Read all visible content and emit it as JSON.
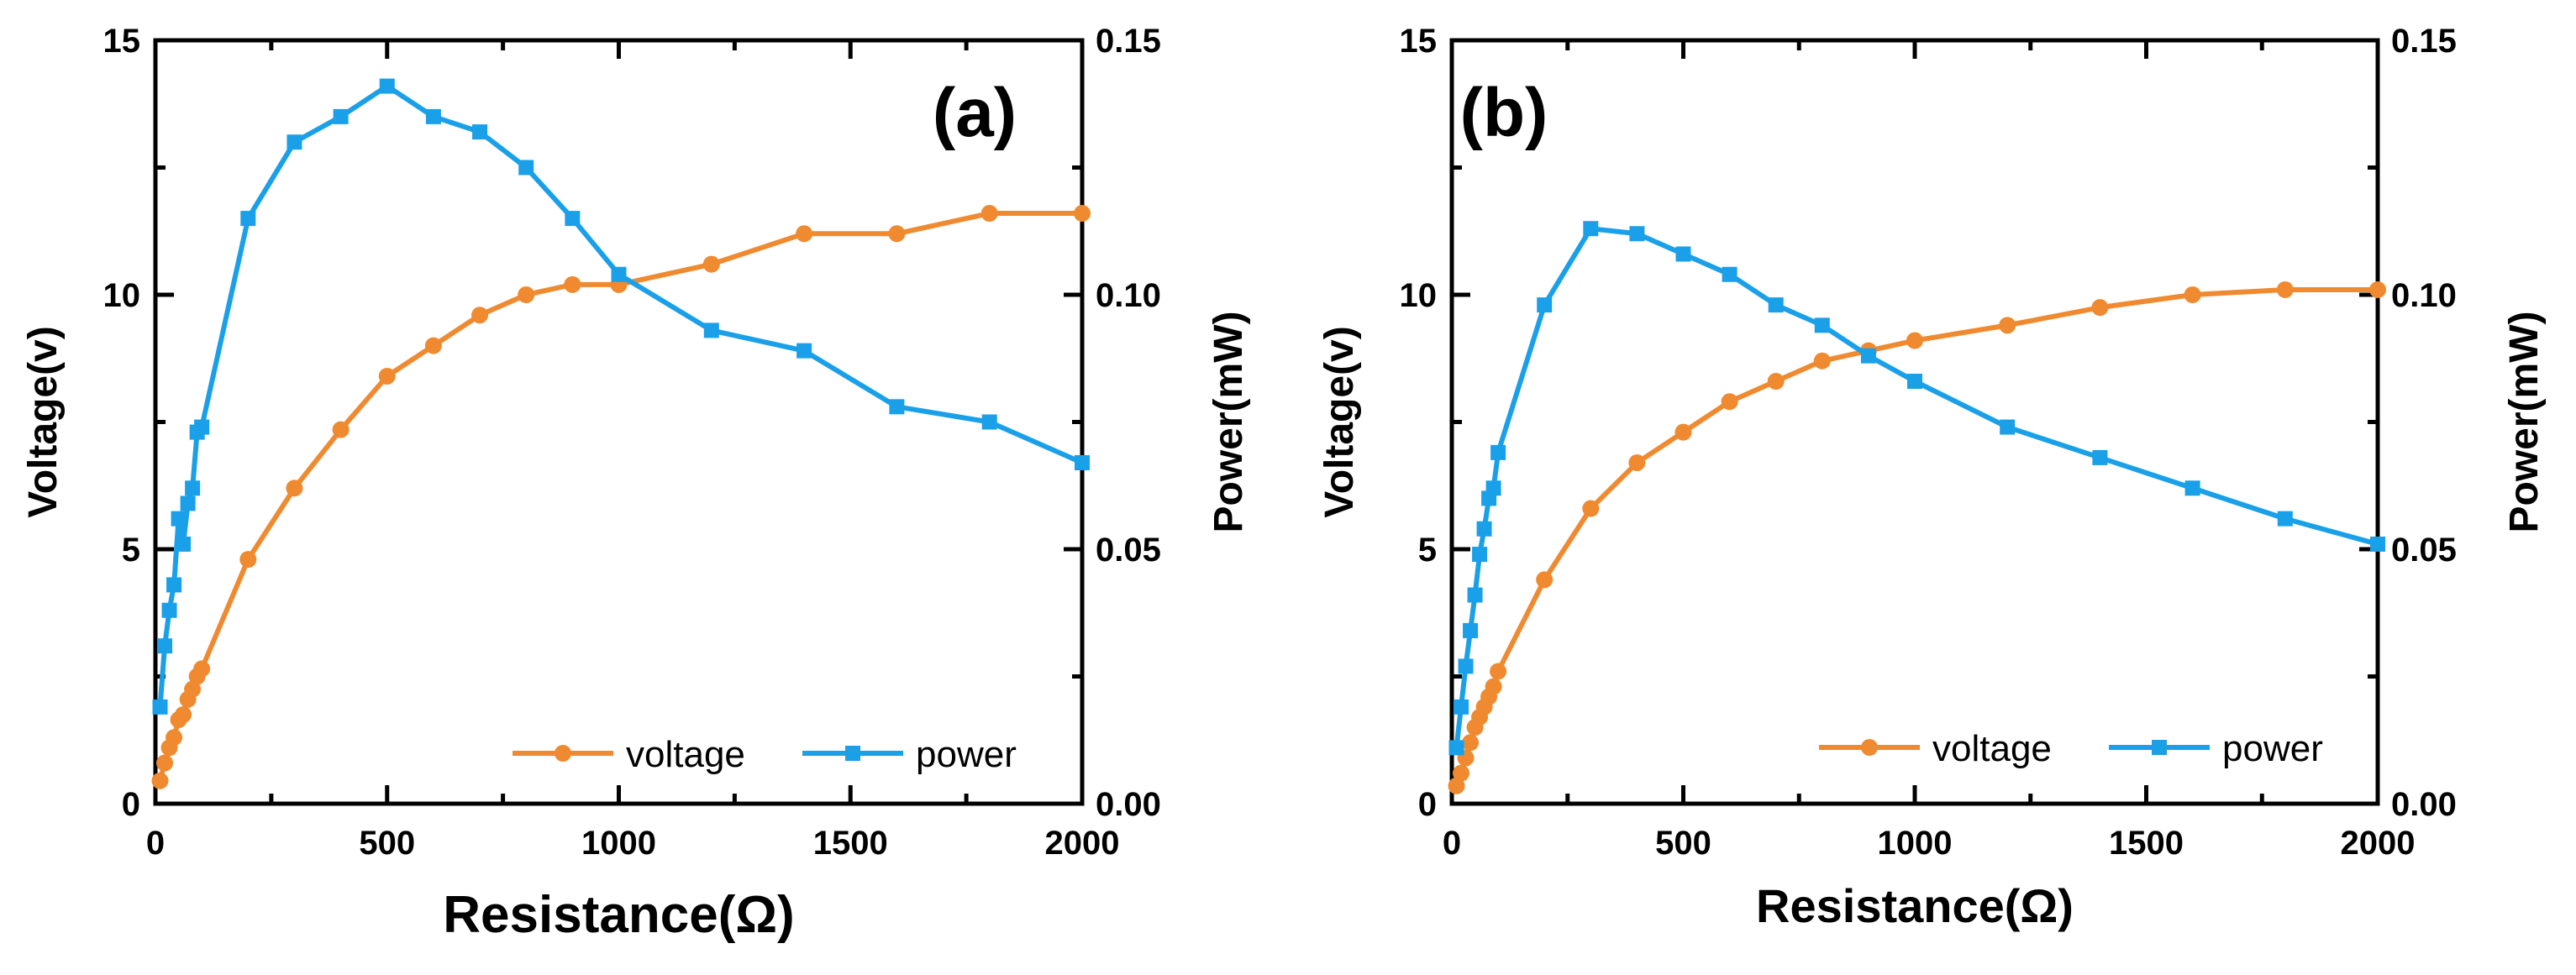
{
  "chart_data": [
    {
      "type": "line",
      "panel_label": "(a)",
      "xlabel": "Resistance(Ω)",
      "ylabel_left": "Voltage(v)",
      "ylabel_right": "Power(mW)",
      "xlim": [
        0,
        2000
      ],
      "ylim_left": [
        0,
        15
      ],
      "ylim_right": [
        0,
        0.15
      ],
      "x_ticks": [
        "0",
        "500",
        "1000",
        "1500",
        "2000"
      ],
      "y_left_ticks": [
        "0",
        "5",
        "10",
        "15"
      ],
      "y_right_ticks": [
        "0.00",
        "0.05",
        "0.10",
        "0.15"
      ],
      "legend_position": "bottom-right",
      "series": [
        {
          "name": "voltage",
          "axis": "left",
          "color": "#f08a30",
          "marker": "circle",
          "x": [
            10,
            20,
            30,
            40,
            50,
            60,
            70,
            80,
            90,
            100,
            200,
            300,
            400,
            500,
            600,
            700,
            800,
            900,
            1000,
            1200,
            1400,
            1600,
            1800,
            2000
          ],
          "y": [
            0.45,
            0.8,
            1.1,
            1.3,
            1.65,
            1.75,
            2.05,
            2.25,
            2.5,
            2.65,
            4.8,
            6.2,
            7.35,
            8.4,
            9.0,
            9.6,
            10.0,
            10.2,
            10.2,
            10.6,
            11.2,
            11.2,
            11.6,
            11.6
          ]
        },
        {
          "name": "power",
          "axis": "right",
          "color": "#1aa0e8",
          "marker": "square",
          "x": [
            10,
            20,
            30,
            40,
            50,
            60,
            70,
            80,
            90,
            100,
            200,
            300,
            400,
            500,
            600,
            700,
            800,
            900,
            1000,
            1200,
            1400,
            1600,
            1800,
            2000
          ],
          "y": [
            0.019,
            0.031,
            0.038,
            0.043,
            0.056,
            0.051,
            0.059,
            0.062,
            0.073,
            0.074,
            0.115,
            0.13,
            0.135,
            0.141,
            0.135,
            0.132,
            0.125,
            0.115,
            0.104,
            0.093,
            0.089,
            0.078,
            0.075,
            0.067
          ]
        }
      ]
    },
    {
      "type": "line",
      "panel_label": "(b)",
      "xlabel": "Resistance(Ω)",
      "ylabel_left": "Voltage(v)",
      "ylabel_right": "Power(mW)",
      "xlim": [
        0,
        2000
      ],
      "ylim_left": [
        0,
        15
      ],
      "ylim_right": [
        0,
        0.15
      ],
      "x_ticks": [
        "0",
        "500",
        "1000",
        "1500",
        "2000"
      ],
      "y_left_ticks": [
        "0",
        "5",
        "10",
        "15"
      ],
      "y_right_ticks": [
        "0.00",
        "0.05",
        "0.10",
        "0.15"
      ],
      "legend_position": "bottom-right",
      "series": [
        {
          "name": "voltage",
          "axis": "left",
          "color": "#f08a30",
          "marker": "circle",
          "x": [
            10,
            20,
            30,
            40,
            50,
            60,
            70,
            80,
            90,
            100,
            200,
            300,
            400,
            500,
            600,
            700,
            800,
            900,
            1000,
            1200,
            1400,
            1600,
            1800,
            2000
          ],
          "y": [
            0.35,
            0.6,
            0.9,
            1.2,
            1.5,
            1.7,
            1.9,
            2.1,
            2.3,
            2.6,
            4.4,
            5.8,
            6.7,
            7.3,
            7.9,
            8.3,
            8.7,
            8.9,
            9.1,
            9.4,
            9.75,
            10.0,
            10.1,
            10.1
          ]
        },
        {
          "name": "power",
          "axis": "right",
          "color": "#1aa0e8",
          "marker": "square",
          "x": [
            10,
            20,
            30,
            40,
            50,
            60,
            70,
            80,
            90,
            100,
            200,
            300,
            400,
            500,
            600,
            700,
            800,
            900,
            1000,
            1200,
            1400,
            1600,
            1800,
            2000
          ],
          "y": [
            0.011,
            0.019,
            0.027,
            0.034,
            0.041,
            0.049,
            0.054,
            0.06,
            0.062,
            0.069,
            0.098,
            0.113,
            0.112,
            0.108,
            0.104,
            0.098,
            0.094,
            0.088,
            0.083,
            0.074,
            0.068,
            0.062,
            0.056,
            0.051
          ]
        }
      ]
    }
  ]
}
